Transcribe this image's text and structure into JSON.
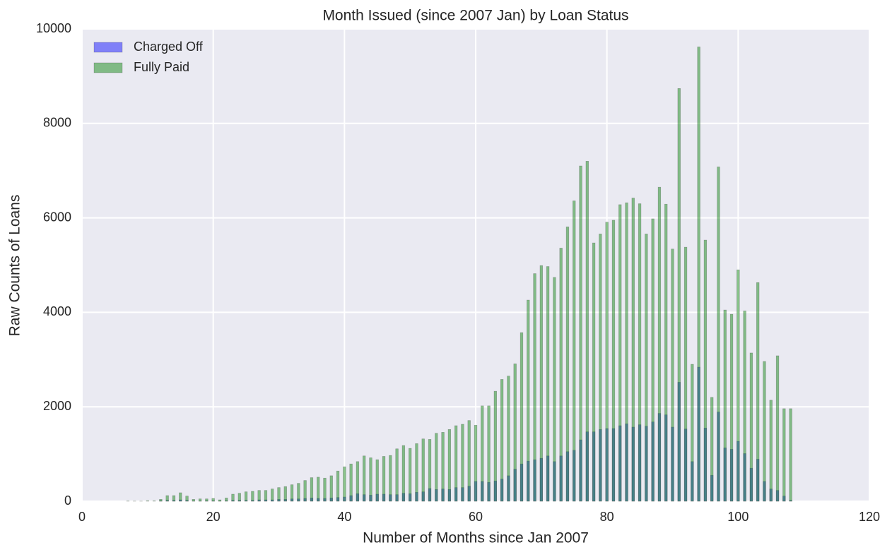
{
  "chart_data": {
    "type": "bar",
    "title": "Month Issued (since 2007 Jan) by Loan Status",
    "xlabel": "Number of Months since Jan 2007",
    "ylabel": "Raw Counts of Loans",
    "x": [
      7,
      8,
      9,
      10,
      11,
      12,
      13,
      14,
      15,
      16,
      17,
      18,
      19,
      20,
      21,
      22,
      23,
      24,
      25,
      26,
      27,
      28,
      29,
      30,
      31,
      32,
      33,
      34,
      35,
      36,
      37,
      38,
      39,
      40,
      41,
      42,
      43,
      44,
      45,
      46,
      47,
      48,
      49,
      50,
      51,
      52,
      53,
      54,
      55,
      56,
      57,
      58,
      59,
      60,
      61,
      62,
      63,
      64,
      65,
      66,
      67,
      68,
      69,
      70,
      71,
      72,
      73,
      74,
      75,
      76,
      77,
      78,
      79,
      80,
      81,
      82,
      83,
      84,
      85,
      86,
      87,
      88,
      89,
      90,
      91,
      92,
      93,
      94,
      95,
      96,
      97,
      98,
      99,
      100,
      101,
      102,
      103,
      104,
      105,
      106,
      107,
      108
    ],
    "series": [
      {
        "name": "Charged Off",
        "color": "#0000ff",
        "values": [
          0,
          0,
          0,
          0,
          0,
          10,
          20,
          20,
          30,
          20,
          5,
          5,
          10,
          10,
          5,
          10,
          20,
          20,
          20,
          20,
          30,
          30,
          30,
          40,
          40,
          50,
          50,
          60,
          70,
          60,
          60,
          70,
          80,
          90,
          120,
          160,
          140,
          130,
          150,
          150,
          140,
          140,
          170,
          160,
          190,
          200,
          270,
          250,
          260,
          250,
          290,
          290,
          320,
          420,
          420,
          400,
          430,
          470,
          540,
          680,
          790,
          850,
          880,
          910,
          960,
          840,
          960,
          1050,
          1080,
          1300,
          1470,
          1470,
          1520,
          1540,
          1540,
          1600,
          1640,
          1570,
          1620,
          1590,
          1680,
          1860,
          1830,
          1570,
          2520,
          1530,
          840,
          2840,
          1550,
          550,
          1890,
          1130,
          1100,
          1270,
          1010,
          700,
          890,
          420,
          260,
          230,
          110,
          20
        ]
      },
      {
        "name": "Fully Paid",
        "color": "#008000",
        "values": [
          5,
          3,
          2,
          10,
          8,
          40,
          120,
          120,
          180,
          110,
          40,
          50,
          50,
          60,
          30,
          70,
          150,
          170,
          200,
          210,
          230,
          230,
          260,
          290,
          310,
          350,
          380,
          440,
          500,
          510,
          490,
          540,
          640,
          730,
          790,
          840,
          960,
          920,
          880,
          950,
          970,
          1110,
          1180,
          1120,
          1220,
          1320,
          1310,
          1440,
          1460,
          1520,
          1600,
          1630,
          1710,
          1610,
          2020,
          2020,
          2330,
          2580,
          2650,
          2910,
          3570,
          4260,
          4820,
          4990,
          4970,
          4740,
          5360,
          5810,
          6360,
          7100,
          7200,
          5470,
          5660,
          5910,
          5950,
          6280,
          6320,
          6420,
          6300,
          5660,
          5980,
          6650,
          6290,
          5340,
          8740,
          5380,
          2900,
          9620,
          5530,
          2200,
          7080,
          4050,
          3960,
          4900,
          4030,
          3140,
          4630,
          2960,
          2140,
          3080,
          1960,
          1960
        ]
      }
    ],
    "xlim": [
      0,
      120
    ],
    "xticks": [
      0,
      20,
      40,
      60,
      80,
      100,
      120
    ],
    "ylim": [
      0,
      10000
    ],
    "yticks": [
      0,
      2000,
      4000,
      6000,
      8000,
      10000
    ],
    "grid": true,
    "legend": "upper left"
  }
}
